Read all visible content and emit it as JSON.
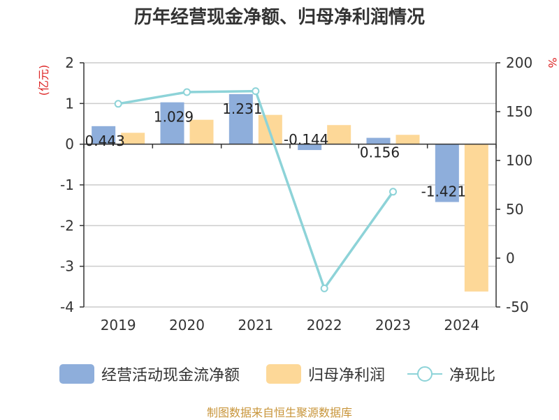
{
  "title": "历年经营现金净额、归母净利润情况",
  "source": "制图数据来自恒生聚源数据库",
  "chart_data": {
    "type": "bar",
    "categories": [
      "2019",
      "2020",
      "2021",
      "2022",
      "2023",
      "2024"
    ],
    "y_left_label": "(亿元)",
    "y_right_label": "%",
    "y_left_range": [
      -4,
      2
    ],
    "y_left_ticks": [
      "2",
      "1",
      "0",
      "-1",
      "-2",
      "-3",
      "-4"
    ],
    "y_right_range": [
      -50,
      200
    ],
    "y_right_ticks": [
      "200",
      "150",
      "100",
      "50",
      "0",
      "-50"
    ],
    "grid": true,
    "legend_position": "bottom",
    "series": [
      {
        "name": "经营活动现金流净额",
        "kind": "bar",
        "axis": "left",
        "color": "#8eaedb",
        "values": [
          0.443,
          1.029,
          1.231,
          -0.144,
          0.156,
          -1.421
        ],
        "labels": [
          "0.443",
          "1.029",
          "1.231",
          "-0.144",
          "0.156",
          "-1.421"
        ]
      },
      {
        "name": "归母净利润",
        "kind": "bar",
        "axis": "left",
        "color": "#fdd898",
        "values": [
          0.28,
          0.6,
          0.72,
          0.47,
          0.23,
          -3.62
        ]
      },
      {
        "name": "净现比",
        "kind": "line",
        "axis": "right",
        "color": "#8dd3d8",
        "values": [
          158,
          170,
          171,
          -31,
          68,
          null
        ]
      }
    ]
  }
}
